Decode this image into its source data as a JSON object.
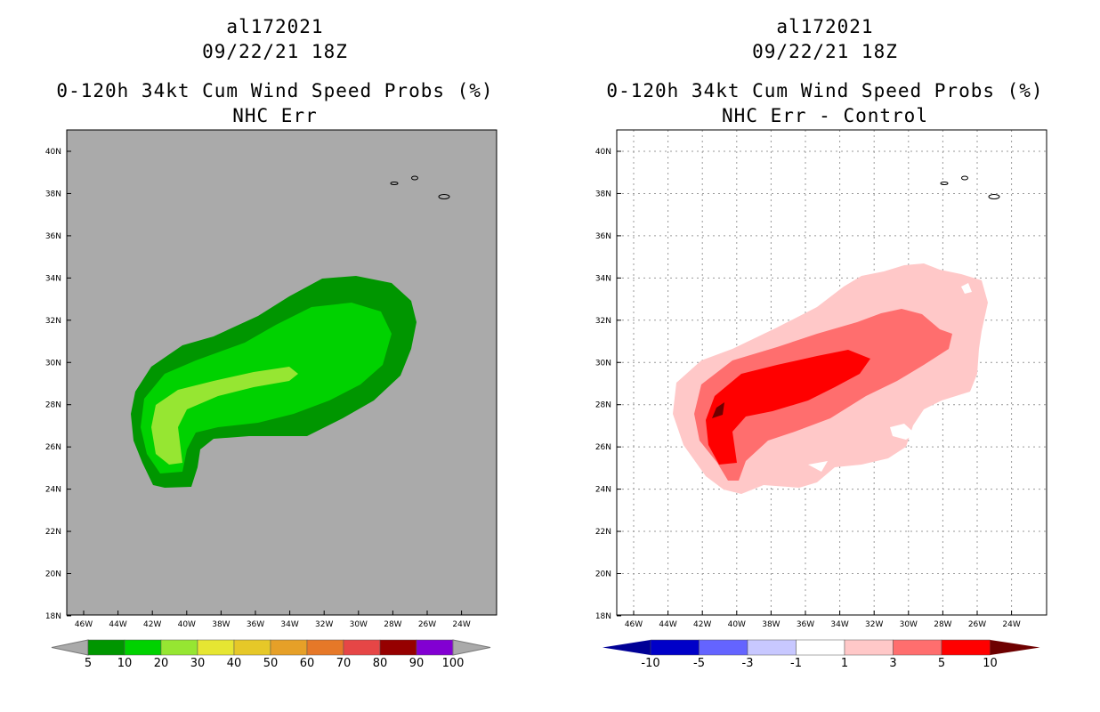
{
  "left": {
    "storm_id": "al172021",
    "datetime": "09/22/21 18Z",
    "title": "0-120h 34kt Cum Wind Speed Probs (%)",
    "subtitle": "NHC Err",
    "colorbar": {
      "labels": [
        "5",
        "10",
        "20",
        "30",
        "40",
        "50",
        "60",
        "70",
        "80",
        "90",
        "100"
      ],
      "colors": [
        "#009600",
        "#00d200",
        "#96e632",
        "#e6e632",
        "#e6c828",
        "#e6a028",
        "#e67828",
        "#e64646",
        "#960000",
        "#8200d2"
      ]
    }
  },
  "right": {
    "storm_id": "al172021",
    "datetime": "09/22/21 18Z",
    "title": "0-120h 34kt Cum Wind Speed Probs (%)",
    "subtitle": "NHC Err - Control",
    "colorbar": {
      "labels": [
        "-10",
        "-5",
        "-3",
        "-1",
        "1",
        "3",
        "5",
        "10"
      ],
      "colors": [
        "#0000c8",
        "#6464ff",
        "#c8c8ff",
        "#ffffff",
        "#ffc8c8",
        "#ff6e6e",
        "#ff0000"
      ],
      "end_colors": [
        "#000096",
        "#6e0000"
      ]
    }
  },
  "map": {
    "lat_labels": [
      "40N",
      "38N",
      "36N",
      "34N",
      "32N",
      "30N",
      "28N",
      "26N",
      "24N",
      "22N",
      "20N",
      "18N"
    ],
    "lon_labels": [
      "46W",
      "44W",
      "42W",
      "40W",
      "38W",
      "36W",
      "34W",
      "32W",
      "30W",
      "28W",
      "26W",
      "24W"
    ]
  }
}
